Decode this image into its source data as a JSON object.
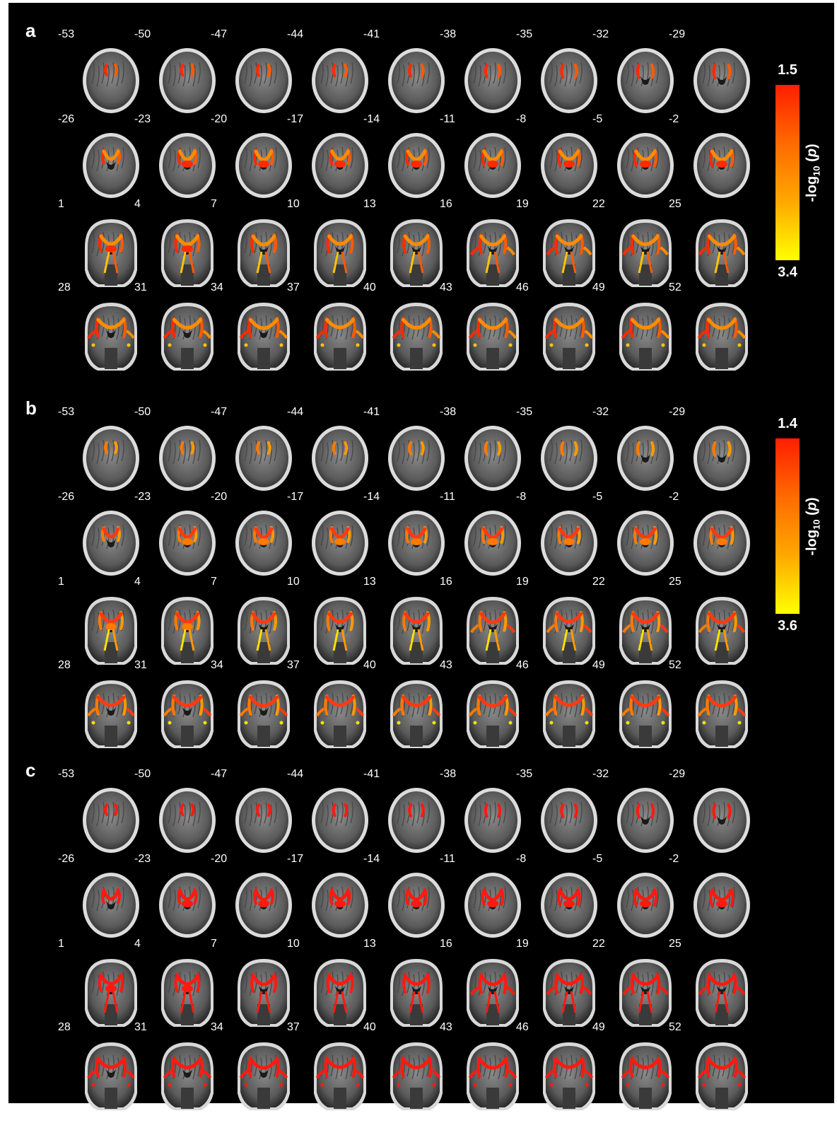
{
  "panels": [
    {
      "letter": "a",
      "colorbar": {
        "top_value": "1.5",
        "bottom_value": "3.4",
        "label_prefix": "-log",
        "label_sub": "10",
        "label_open": " (",
        "label_var": "p",
        "label_close": ")",
        "gradient": [
          "#ff1e00",
          "#ff6a00",
          "#ffa800",
          "#ffff00"
        ]
      },
      "overlay_colors": [
        "#ff2a00",
        "#ff5a00",
        "#ff8c00",
        "#ffc400"
      ]
    },
    {
      "letter": "b",
      "colorbar": {
        "top_value": "1.4",
        "bottom_value": "3.6",
        "label_prefix": "-log",
        "label_sub": "10",
        "label_open": " (",
        "label_var": "p",
        "label_close": ")",
        "gradient": [
          "#ff1e00",
          "#ff6a00",
          "#ffa800",
          "#ffff00"
        ]
      },
      "overlay_colors": [
        "#ff7a00",
        "#ff9a00",
        "#ff3a10",
        "#ffe000"
      ]
    },
    {
      "letter": "c",
      "overlay_colors": [
        "#ff1a10",
        "#ff1a10",
        "#ff1a10",
        "#ff1a10"
      ]
    }
  ],
  "slice_rows": [
    [
      "-53",
      "-50",
      "-47",
      "-44",
      "-41",
      "-38",
      "-35",
      "-32",
      "-29"
    ],
    [
      "-26",
      "-23",
      "-20",
      "-17",
      "-14",
      "-11",
      "-8",
      "-5",
      "-2"
    ],
    [
      "1",
      "4",
      "7",
      "10",
      "13",
      "16",
      "19",
      "22",
      "25"
    ],
    [
      "28",
      "31",
      "34",
      "37",
      "40",
      "43",
      "46",
      "49",
      "52"
    ]
  ]
}
